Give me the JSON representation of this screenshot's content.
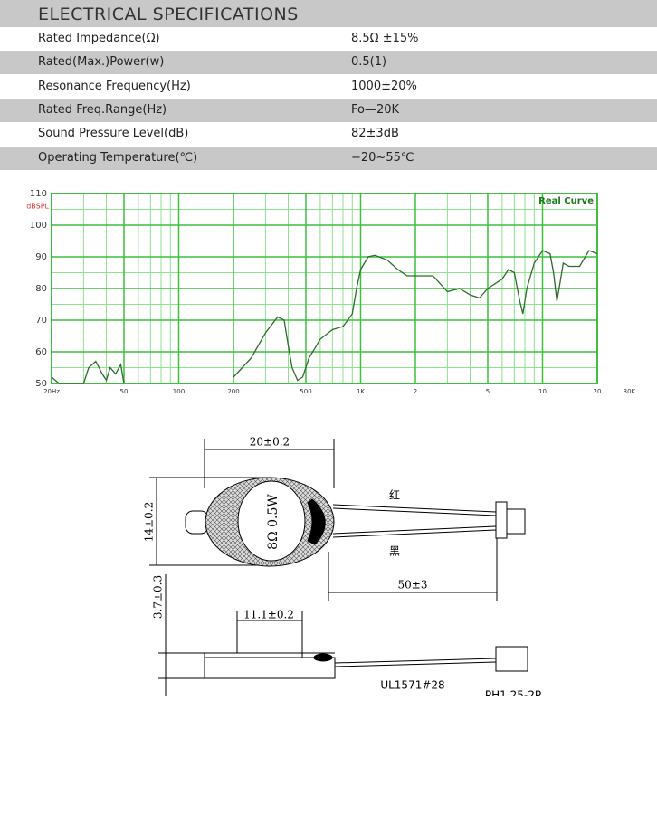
{
  "table": {
    "title": "ELECTRICAL SPECIFICATIONS",
    "rows": [
      [
        "Rated Impedance(Ω)",
        "8.5Ω ±15%"
      ],
      [
        "Rated(Max.)Power(w)",
        "0.5(1)"
      ],
      [
        "Resonance Frequency(Hz)",
        "1000±20%"
      ],
      [
        "Rated Freq.Range(Hz)",
        "Fo—20K"
      ],
      [
        "Sound Pressure Level(dB)",
        "82±3dB"
      ],
      [
        "Operating Temperature(℃)",
        "−20~55℃"
      ]
    ]
  },
  "chart_data": {
    "type": "line",
    "y_label": "dBSPL",
    "annotation": "Real Curve",
    "log_x": true,
    "grid": true,
    "xlim": [
      20,
      20000
    ],
    "ylim": [
      50,
      110
    ],
    "xticks": [
      {
        "value": 20,
        "label": "20Hz"
      },
      50,
      100,
      200,
      500,
      {
        "value": 1000,
        "label": "1K"
      },
      {
        "value": 2000,
        "label": "2"
      },
      {
        "value": 5000,
        "label": "5"
      },
      {
        "value": 10000,
        "label": "10"
      },
      {
        "value": 20000,
        "label": "20"
      },
      {
        "value": 30000,
        "label": "30K"
      }
    ],
    "yticks": [
      50,
      60,
      70,
      80,
      90,
      100,
      110
    ],
    "x": [
      20,
      22,
      25,
      30,
      32,
      35,
      38,
      40,
      42,
      45,
      48,
      50,
      180,
      200,
      250,
      300,
      350,
      380,
      400,
      420,
      450,
      480,
      520,
      600,
      700,
      800,
      900,
      950,
      1000,
      1100,
      1200,
      1400,
      1600,
      1800,
      2000,
      2500,
      3000,
      3500,
      4000,
      4500,
      5000,
      6000,
      6500,
      7000,
      7500,
      7800,
      8200,
      9000,
      10000,
      11000,
      11500,
      12000,
      12500,
      13000,
      14000,
      16000,
      18000,
      20000
    ],
    "series": [
      {
        "name": "Real Curve",
        "color": "#2e6b2e",
        "values": [
          52,
          50,
          50,
          50,
          55,
          57,
          53,
          51,
          55,
          53,
          56,
          50,
          null,
          52,
          58,
          66,
          71,
          70,
          62,
          55,
          51,
          52,
          58,
          64,
          67,
          68,
          72,
          80,
          86,
          90,
          90.5,
          89,
          86,
          84,
          84,
          84,
          79,
          80,
          78,
          77,
          80,
          83,
          86,
          85,
          76,
          72,
          80,
          88,
          92,
          91,
          85,
          76,
          82,
          88,
          87,
          87,
          92,
          91
        ]
      }
    ]
  },
  "drawing": {
    "width": "20±0.2",
    "height": "14±0.2",
    "marking": "8Ω 0.5W",
    "red": "红",
    "black": "黑",
    "lead": "50±3",
    "thickness": "3.7±0.3",
    "inner": "11.1±0.2",
    "wire": "UL1571#28",
    "connector": "PH1.25-2P"
  }
}
